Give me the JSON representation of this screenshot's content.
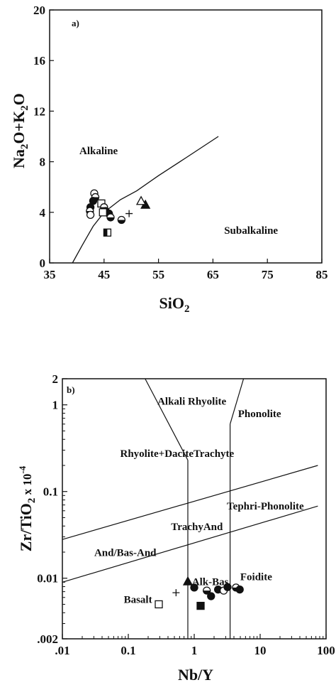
{
  "chart_data": [
    {
      "type": "scatter",
      "panel_label": "a)",
      "xlabel": "SiO2",
      "ylabel": "Na2O+K2O",
      "xlim": [
        35,
        85
      ],
      "ylim": [
        0,
        20
      ],
      "xticks": [
        "35",
        "45",
        "55",
        "65",
        "75",
        "85"
      ],
      "yticks": [
        "0",
        "4",
        "8",
        "12",
        "16",
        "20"
      ],
      "grid": false,
      "field_labels": [
        {
          "text": "Alkaline",
          "x": 44,
          "y": 8.6
        },
        {
          "text": "Subalkaline",
          "x": 72,
          "y": 2.3
        }
      ],
      "boundary_line": {
        "x": [
          39.2,
          41,
          43,
          45,
          48,
          51,
          55,
          60,
          66
        ],
        "y": [
          0,
          1.4,
          2.9,
          4.0,
          5.0,
          5.7,
          6.9,
          8.3,
          10.0
        ]
      },
      "points": [
        {
          "x": 43.2,
          "y": 5.5,
          "marker": "circle-open"
        },
        {
          "x": 43.4,
          "y": 5.2,
          "marker": "circle-half"
        },
        {
          "x": 43.0,
          "y": 4.9,
          "marker": "circle-filled"
        },
        {
          "x": 42.5,
          "y": 4.4,
          "marker": "circle-filled"
        },
        {
          "x": 42.4,
          "y": 4.1,
          "marker": "circle-half"
        },
        {
          "x": 42.5,
          "y": 3.8,
          "marker": "circle-open"
        },
        {
          "x": 44.5,
          "y": 4.7,
          "marker": "square-open"
        },
        {
          "x": 45.0,
          "y": 4.4,
          "marker": "circle-half"
        },
        {
          "x": 45.3,
          "y": 4.1,
          "marker": "circle-filled"
        },
        {
          "x": 45.9,
          "y": 3.9,
          "marker": "circle-filled"
        },
        {
          "x": 46.2,
          "y": 3.6,
          "marker": "circle-half"
        },
        {
          "x": 44.8,
          "y": 4.0,
          "marker": "square-open"
        },
        {
          "x": 48.2,
          "y": 3.4,
          "marker": "circle-half"
        },
        {
          "x": 49.6,
          "y": 3.9,
          "marker": "plus"
        },
        {
          "x": 52.6,
          "y": 4.6,
          "marker": "triangle-filled"
        },
        {
          "x": 51.8,
          "y": 4.9,
          "marker": "triangle-open"
        },
        {
          "x": 45.6,
          "y": 2.4,
          "marker": "square-half"
        }
      ]
    },
    {
      "type": "scatter",
      "panel_label": "b)",
      "xlabel": "Nb/Y",
      "ylabel": "Zr/TiO2 x 10-4",
      "xscale": "log",
      "yscale": "log",
      "xlim": [
        0.01,
        100
      ],
      "ylim": [
        0.002,
        2
      ],
      "xticks": [
        ".01",
        "0.1",
        "1",
        "10",
        "100"
      ],
      "yticks": [
        ".002",
        "0.01",
        "0.1",
        "1",
        "2"
      ],
      "grid": false,
      "field_labels": [
        {
          "text": "Alkali Rhyolite",
          "x": 0.92,
          "y": 1.0
        },
        {
          "text": "Phonolite",
          "x": 9.8,
          "y": 0.72
        },
        {
          "text": "Rhyolite+DaciteTrachyte",
          "x": 0.55,
          "y": 0.25
        },
        {
          "text": "Tephri-Phonolite",
          "x": 12,
          "y": 0.062
        },
        {
          "text": "TrachyAnd",
          "x": 1.1,
          "y": 0.036
        },
        {
          "text": "And/Bas-And",
          "x": 0.09,
          "y": 0.018
        },
        {
          "text": "Foidite",
          "x": 8.7,
          "y": 0.0095
        },
        {
          "text": "Alk-Bas",
          "x": 1.75,
          "y": 0.0083
        },
        {
          "text": "Basalt",
          "x": 0.14,
          "y": 0.0052
        }
      ],
      "boundary_lines": [
        {
          "x": [
            0.01,
            75
          ],
          "y": [
            0.028,
            0.2
          ]
        },
        {
          "x": [
            0.01,
            75
          ],
          "y": [
            0.009,
            0.068
          ]
        },
        {
          "x": [
            0.18,
            0.8
          ],
          "y": [
            2,
            0.23
          ]
        },
        {
          "x": [
            0.8,
            0.8
          ],
          "y": [
            0.23,
            0.002
          ]
        },
        {
          "x": [
            5.6,
            3.5
          ],
          "y": [
            2,
            0.6
          ]
        },
        {
          "x": [
            3.5,
            3.5
          ],
          "y": [
            0.6,
            0.002
          ]
        }
      ],
      "points": [
        {
          "x": 0.53,
          "y": 0.0068,
          "marker": "plus"
        },
        {
          "x": 0.8,
          "y": 0.0092,
          "marker": "triangle-filled"
        },
        {
          "x": 1.0,
          "y": 0.0078,
          "marker": "circle-filled"
        },
        {
          "x": 1.55,
          "y": 0.0072,
          "marker": "circle-half"
        },
        {
          "x": 1.8,
          "y": 0.0062,
          "marker": "circle-filled"
        },
        {
          "x": 2.3,
          "y": 0.0074,
          "marker": "circle-filled"
        },
        {
          "x": 2.8,
          "y": 0.0072,
          "marker": "circle-open"
        },
        {
          "x": 3.2,
          "y": 0.0079,
          "marker": "circle-filled"
        },
        {
          "x": 4.3,
          "y": 0.0078,
          "marker": "circle-half"
        },
        {
          "x": 4.9,
          "y": 0.0074,
          "marker": "circle-filled"
        },
        {
          "x": 0.29,
          "y": 0.005,
          "marker": "square-open"
        },
        {
          "x": 1.25,
          "y": 0.0048,
          "marker": "square-filled"
        }
      ]
    }
  ]
}
